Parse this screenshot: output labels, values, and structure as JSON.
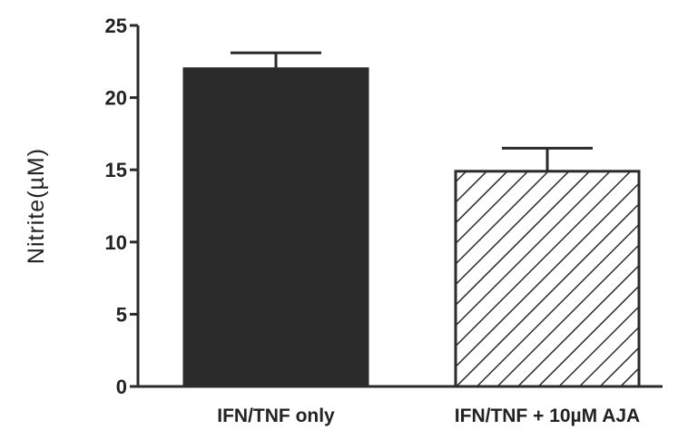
{
  "chart_data": {
    "type": "bar",
    "title": "",
    "xlabel": "",
    "ylabel": "Nitrite(µM)",
    "ylim": [
      0,
      25
    ],
    "yticks": [
      0,
      5,
      10,
      15,
      20,
      25
    ],
    "categories": [
      "IFN/TNF only",
      "IFN/TNF + 10µM AJA"
    ],
    "values": [
      22.0,
      14.9
    ],
    "errors": [
      1.1,
      1.6
    ],
    "bar_fills": [
      "solid",
      "hatched"
    ],
    "colors": {
      "bar": "#2b2b2b",
      "axis": "#2b2b2b",
      "hatch": "#2b2b2b"
    },
    "grid": false,
    "legend": "none"
  }
}
